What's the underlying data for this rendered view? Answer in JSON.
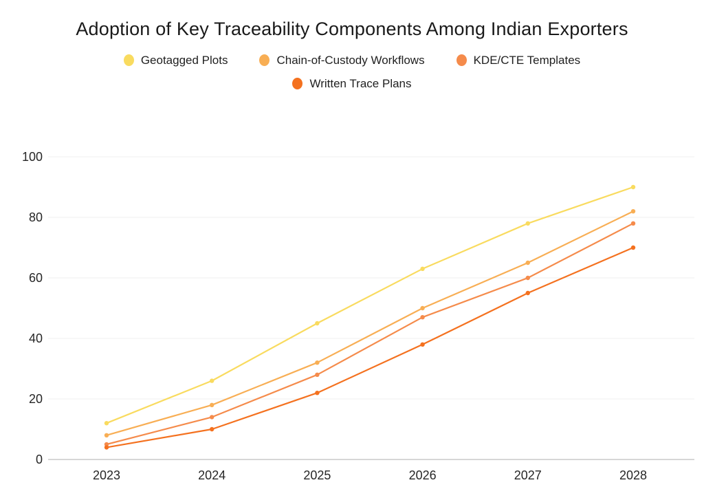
{
  "title": "Adoption of Key Traceability Components Among Indian Exporters",
  "chart_data": {
    "type": "line",
    "title": "Adoption of Key Traceability Components Among Indian Exporters",
    "x": [
      "2023",
      "2024",
      "2025",
      "2026",
      "2027",
      "2028"
    ],
    "series": [
      {
        "name": "Geotagged Plots",
        "color": "#F9DB5F",
        "values": [
          12,
          26,
          45,
          63,
          78,
          90
        ]
      },
      {
        "name": "Chain-of-Custody Workflows",
        "color": "#F8AE54",
        "values": [
          8,
          18,
          32,
          50,
          65,
          82
        ]
      },
      {
        "name": "KDE/CTE Templates",
        "color": "#F58B4B",
        "values": [
          5,
          14,
          28,
          47,
          60,
          78
        ]
      },
      {
        "name": "Written Trace Plans",
        "color": "#F4711F",
        "values": [
          4,
          10,
          22,
          38,
          55,
          70
        ]
      }
    ],
    "xlabel": "",
    "ylabel": "",
    "ylim": [
      0,
      100
    ],
    "yticks": [
      0,
      20,
      40,
      60,
      80,
      100
    ],
    "grid": "horizontal",
    "gridline_color": "#efefef",
    "axis_line_color": "#c9c9c9",
    "tick_label_color": "#262626",
    "legend_position": "top",
    "markers": true
  }
}
